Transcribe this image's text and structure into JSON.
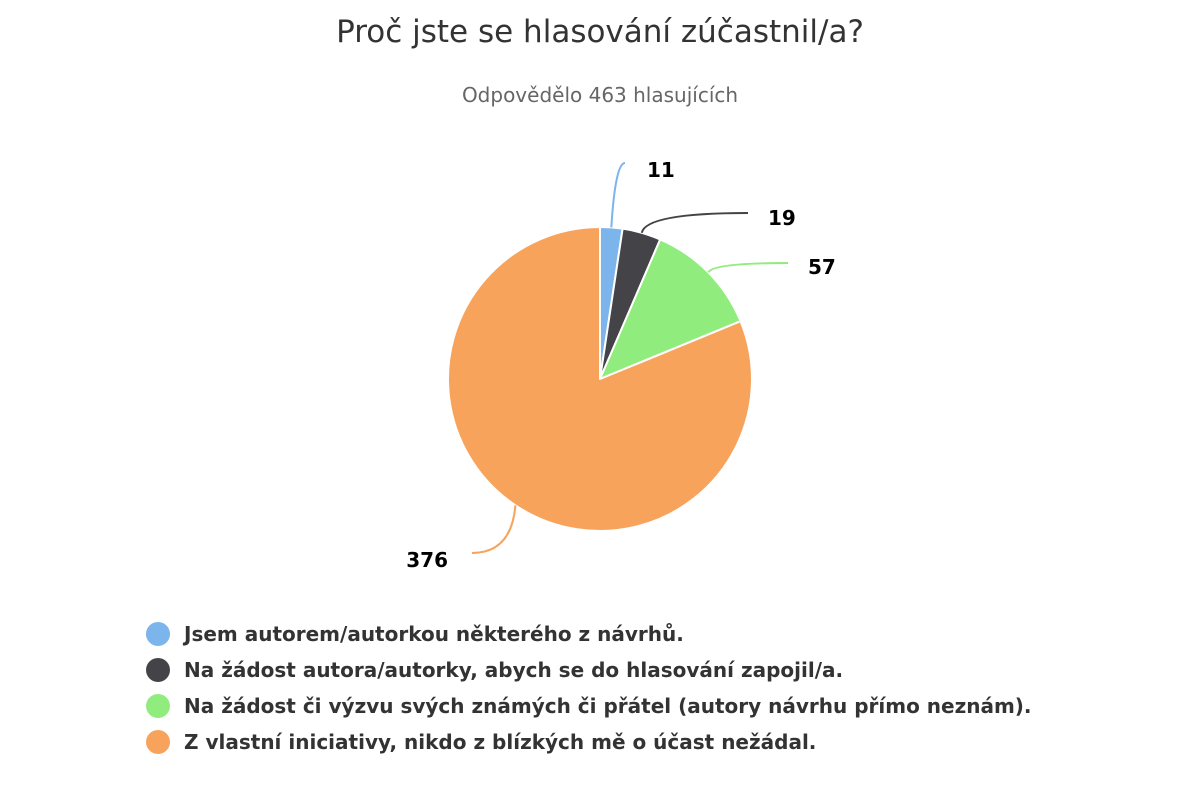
{
  "chart_data": {
    "type": "pie",
    "title": "Proč jste se hlasování zúčastnil/a?",
    "subtitle": "Odpovědělo 463 hlasujících",
    "categories": [
      "Jsem autorem/autorkou některého z návrhů.",
      "Na žádost autora/autorky, abych se do hlasování zapojil/a.",
      "Na žádost či výzvu svých známých či přátel (autory návrhu přímo neznám).",
      "Z vlastní iniciativy, nikdo z blízkých mě o účast nežádal."
    ],
    "values": [
      11,
      19,
      57,
      376
    ],
    "data_labels": [
      "11",
      "19",
      "57",
      "376"
    ],
    "colors": [
      "#7cb5ec",
      "#434348",
      "#90ed7d",
      "#f7a35c"
    ],
    "legend_position": "bottom-left"
  }
}
